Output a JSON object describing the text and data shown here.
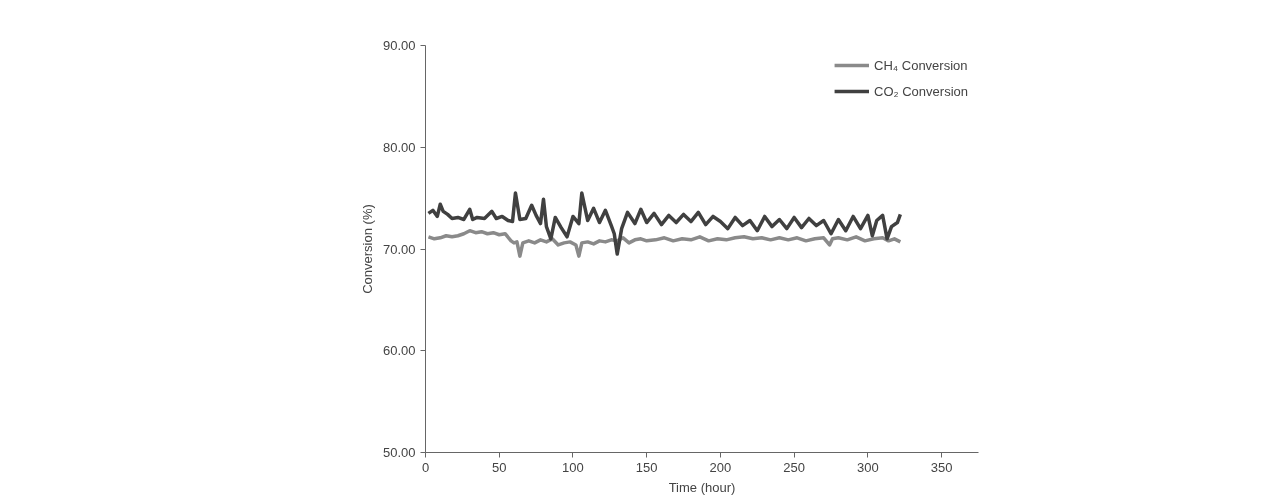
{
  "chart_data": {
    "type": "line",
    "xlabel": "Time (hour)",
    "ylabel": "Conversion (%)",
    "xlim": [
      0,
      375
    ],
    "ylim": [
      50,
      90
    ],
    "xticks": [
      0,
      50,
      100,
      150,
      200,
      250,
      300,
      350
    ],
    "yticks": [
      {
        "value": 50,
        "label": "50.00"
      },
      {
        "value": 60,
        "label": "60.00"
      },
      {
        "value": 70,
        "label": "70.00"
      },
      {
        "value": 80,
        "label": "80.00"
      },
      {
        "value": 90,
        "label": "90.00"
      }
    ],
    "grid": false,
    "legend": "top right",
    "marker": "none",
    "line_style": "solid",
    "series": [
      {
        "name": "CH₄ Conversion",
        "color": "#8a8a8a",
        "x": [
          2,
          6,
          10,
          14,
          18,
          22,
          26,
          30,
          34,
          38,
          42,
          46,
          50,
          54,
          58,
          60,
          62,
          64,
          66,
          70,
          74,
          78,
          82,
          86,
          90,
          94,
          98,
          102,
          104,
          106,
          110,
          114,
          118,
          122,
          126,
          130,
          134,
          138,
          142,
          146,
          150,
          156,
          162,
          168,
          174,
          180,
          186,
          192,
          198,
          204,
          210,
          216,
          222,
          228,
          234,
          240,
          246,
          252,
          258,
          264,
          270,
          274,
          276,
          280,
          286,
          292,
          298,
          304,
          310,
          314,
          318,
          322
        ],
        "values": [
          71.2,
          71.0,
          71.1,
          71.3,
          71.2,
          71.3,
          71.5,
          71.8,
          71.6,
          71.7,
          71.5,
          71.6,
          71.4,
          71.5,
          70.8,
          70.6,
          70.7,
          69.3,
          70.6,
          70.8,
          70.6,
          70.9,
          70.7,
          71.0,
          70.4,
          70.6,
          70.7,
          70.4,
          69.3,
          70.6,
          70.7,
          70.5,
          70.8,
          70.7,
          70.9,
          70.8,
          71.1,
          70.6,
          70.9,
          71.0,
          70.8,
          70.9,
          71.1,
          70.8,
          71.0,
          70.9,
          71.2,
          70.8,
          71.0,
          70.9,
          71.1,
          71.2,
          71.0,
          71.1,
          70.9,
          71.1,
          70.9,
          71.1,
          70.8,
          71.0,
          71.1,
          70.4,
          71.0,
          71.1,
          70.9,
          71.2,
          70.8,
          71.0,
          71.1,
          70.8,
          71.0,
          70.7
        ]
      },
      {
        "name": "CO₂ Conversion",
        "color": "#404040",
        "x": [
          2,
          5,
          8,
          10,
          12,
          15,
          18,
          22,
          26,
          30,
          32,
          35,
          40,
          45,
          48,
          52,
          56,
          59,
          61,
          64,
          68,
          72,
          75,
          78,
          80,
          82,
          85,
          88,
          92,
          96,
          100,
          104,
          106,
          110,
          114,
          118,
          122,
          126,
          128,
          130,
          133,
          137,
          142,
          146,
          150,
          155,
          160,
          165,
          170,
          175,
          180,
          185,
          190,
          195,
          200,
          205,
          210,
          215,
          220,
          225,
          230,
          235,
          240,
          245,
          250,
          255,
          260,
          265,
          270,
          275,
          280,
          285,
          290,
          295,
          300,
          303,
          306,
          310,
          313,
          316,
          320,
          322
        ],
        "values": [
          73.5,
          73.8,
          73.2,
          74.4,
          73.7,
          73.4,
          73.0,
          73.1,
          72.9,
          73.9,
          72.9,
          73.1,
          73.0,
          73.7,
          73.0,
          73.2,
          72.8,
          72.7,
          75.5,
          72.9,
          73.0,
          74.3,
          73.3,
          72.5,
          74.9,
          72.2,
          71.0,
          73.1,
          72.1,
          71.2,
          73.2,
          72.5,
          75.5,
          72.8,
          74.0,
          72.6,
          73.8,
          72.3,
          71.5,
          69.5,
          72.0,
          73.6,
          72.5,
          73.9,
          72.6,
          73.5,
          72.4,
          73.3,
          72.6,
          73.4,
          72.7,
          73.6,
          72.4,
          73.2,
          72.7,
          72.0,
          73.1,
          72.3,
          72.8,
          71.8,
          73.2,
          72.2,
          72.9,
          72.0,
          73.1,
          72.1,
          73.0,
          72.3,
          72.8,
          71.5,
          72.9,
          71.8,
          73.2,
          72.0,
          73.3,
          71.3,
          72.8,
          73.3,
          71.0,
          72.2,
          72.6,
          73.4
        ]
      }
    ]
  }
}
